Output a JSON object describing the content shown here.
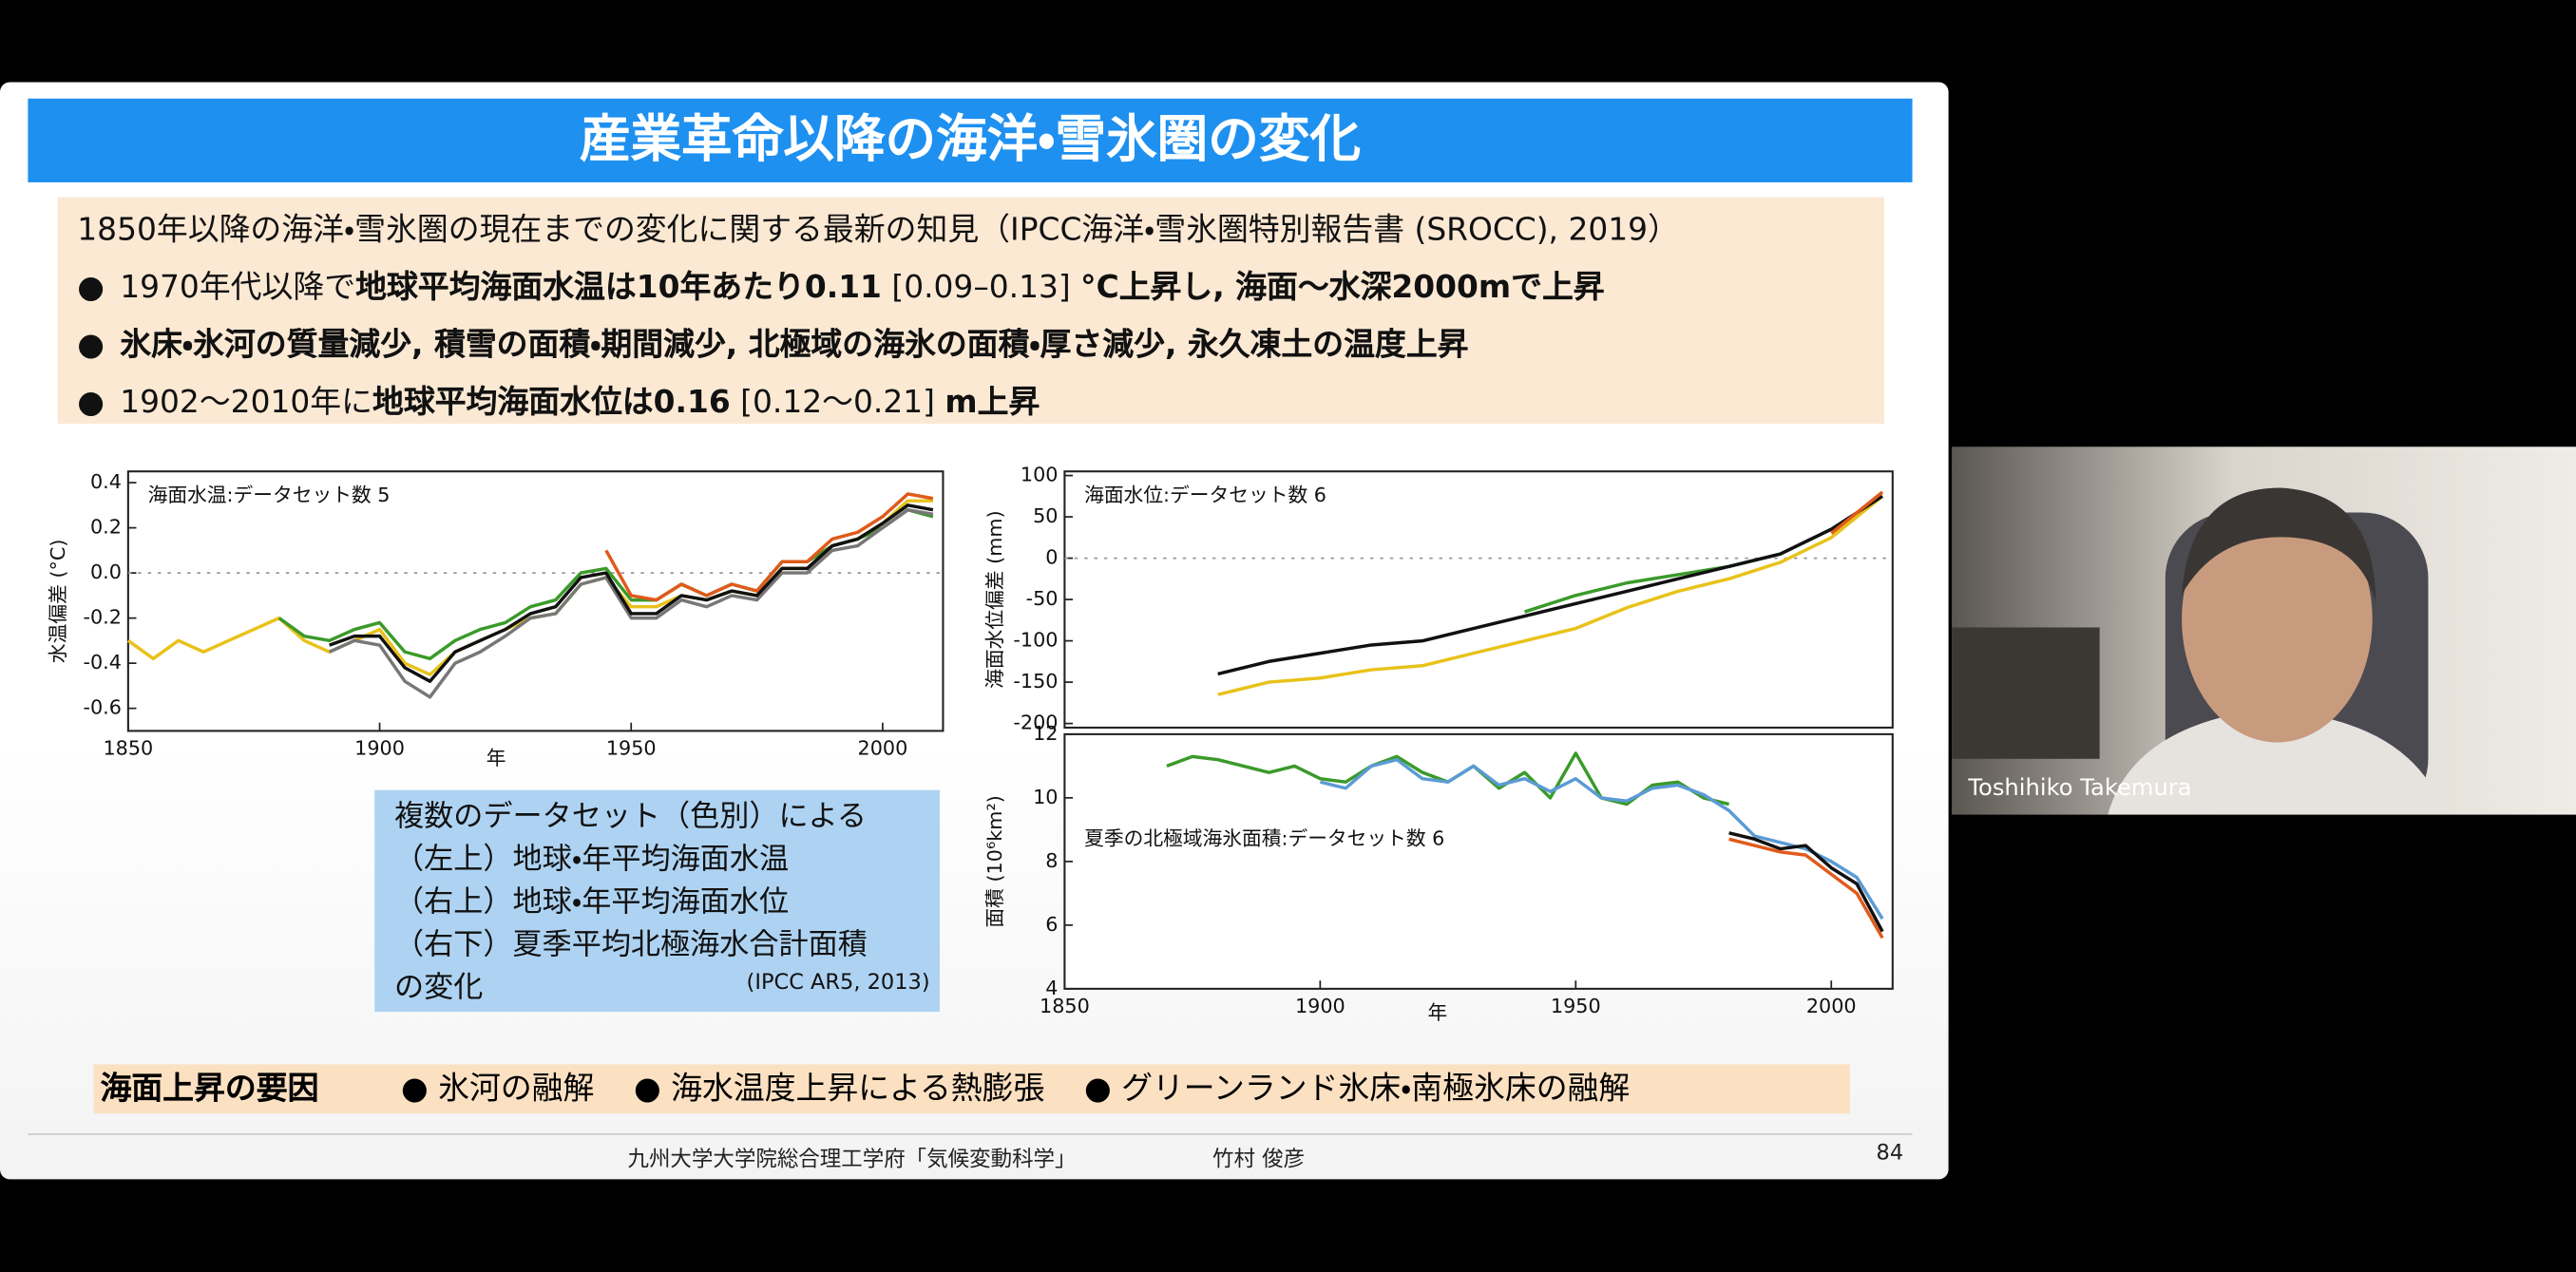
{
  "slide": {
    "title": "産業革命以降の海洋・雪氷圏の変化",
    "intro": "1850年以降の海洋・雪氷圏の現在までの変化に関する最新の知見（IPCC海洋・雪氷圏特別報告書 (SROCC), 2019）",
    "bullets": [
      [
        "1970年代以降で",
        "地球平均海面水温は10年あたり0.11",
        " [0.09–0.13] ",
        "°C上昇し, 海面〜水深2000mで上昇"
      ],
      [
        "氷床・氷河の質量減少, 積雪の面積・期間減少, 北極域の海氷の面積・厚さ減少, 永久凍土の温度上昇"
      ],
      [
        "1902〜2010年に",
        "地球平均海面水位は0.16",
        " [0.12〜0.21] ",
        "m上昇"
      ]
    ],
    "note": {
      "lines": [
        "複数のデータセット（色別）による",
        "（左上）地球・年平均海面水温",
        "（右上）地球・年平均海面水位",
        "（右下）夏季平均北極海水合計面積",
        "の変化"
      ],
      "source": "(IPCC AR5, 2013)"
    },
    "causes": {
      "label": "海面上昇の要因",
      "items": [
        "氷河の融解",
        "海水温度上昇による熱膨張",
        "グリーンランド氷床・南極氷床の融解"
      ]
    },
    "footer": {
      "course": "九州大学大学院総合理工学府「気候変動科学」",
      "author": "竹村 俊彦",
      "page": 84
    }
  },
  "participant": {
    "name": "Toshihiko Takemura"
  },
  "chart_data": [
    {
      "type": "line",
      "title": "海面水温:データセット数 5",
      "ylabel": "水温偏差 (°C)",
      "xlabel": "年",
      "xlim": [
        1850,
        2012
      ],
      "xticks": [
        1850,
        1900,
        1950,
        2000
      ],
      "ylim": [
        -0.7,
        0.45
      ],
      "yticks": [
        {
          "value": 0.4,
          "label": "0.4"
        },
        {
          "value": 0.2,
          "label": "0.2"
        },
        {
          "value": 0,
          "label": "0.0"
        },
        -0.2,
        -0.4,
        -0.6
      ],
      "zero_line": true,
      "x": [
        1850,
        1855,
        1860,
        1865,
        1870,
        1875,
        1880,
        1885,
        1890,
        1895,
        1900,
        1905,
        1910,
        1915,
        1920,
        1925,
        1930,
        1935,
        1940,
        1945,
        1950,
        1955,
        1960,
        1965,
        1970,
        1975,
        1980,
        1985,
        1990,
        1995,
        2000,
        2005,
        2010
      ],
      "series": [
        {
          "color": "#e8c21a",
          "values": [
            -0.3,
            -0.38,
            -0.3,
            -0.35,
            -0.3,
            -0.25,
            -0.2,
            -0.3,
            -0.35,
            -0.3,
            -0.25,
            -0.4,
            -0.45,
            -0.35,
            -0.3,
            -0.25,
            -0.2,
            -0.18,
            -0.05,
            -0.02,
            -0.15,
            -0.15,
            -0.1,
            -0.12,
            -0.08,
            -0.1,
            0.02,
            0.02,
            0.12,
            0.15,
            0.22,
            0.32,
            0.32
          ]
        },
        {
          "color": "#3a9a2a",
          "values": [
            null,
            null,
            null,
            null,
            null,
            null,
            -0.2,
            -0.28,
            -0.3,
            -0.25,
            -0.22,
            -0.35,
            -0.38,
            -0.3,
            -0.25,
            -0.22,
            -0.15,
            -0.12,
            0.0,
            0.02,
            -0.12,
            -0.12,
            -0.05,
            -0.1,
            -0.05,
            -0.08,
            0.05,
            0.05,
            0.12,
            0.15,
            0.2,
            0.28,
            0.25
          ]
        },
        {
          "color": "#777777",
          "values": [
            null,
            null,
            null,
            null,
            null,
            null,
            null,
            null,
            -0.35,
            -0.3,
            -0.32,
            -0.48,
            -0.55,
            -0.4,
            -0.35,
            -0.28,
            -0.2,
            -0.18,
            -0.05,
            -0.02,
            -0.2,
            -0.2,
            -0.12,
            -0.15,
            -0.1,
            -0.12,
            0.0,
            0.0,
            0.1,
            0.12,
            0.2,
            0.28,
            0.26
          ]
        },
        {
          "color": "#111111",
          "values": [
            null,
            null,
            null,
            null,
            null,
            null,
            null,
            null,
            -0.32,
            -0.28,
            -0.28,
            -0.42,
            -0.48,
            -0.35,
            -0.3,
            -0.25,
            -0.18,
            -0.15,
            -0.02,
            0.0,
            -0.18,
            -0.18,
            -0.1,
            -0.12,
            -0.08,
            -0.1,
            0.02,
            0.02,
            0.12,
            0.15,
            0.22,
            0.3,
            0.28
          ]
        },
        {
          "color": "#e05a1a",
          "values": [
            null,
            null,
            null,
            null,
            null,
            null,
            null,
            null,
            null,
            null,
            null,
            null,
            null,
            null,
            null,
            null,
            null,
            null,
            null,
            0.1,
            -0.1,
            -0.12,
            -0.05,
            -0.1,
            -0.05,
            -0.08,
            0.05,
            0.05,
            0.15,
            0.18,
            0.25,
            0.35,
            0.33
          ]
        }
      ]
    },
    {
      "type": "line",
      "title": "海面水位:データセット数 6",
      "ylabel": "海面水位偏差 (mm)",
      "xlim": [
        1850,
        2012
      ],
      "ylim": [
        -205,
        105
      ],
      "yticks": [
        100,
        50,
        0,
        -50,
        -100,
        -150,
        -200
      ],
      "zero_line": true,
      "x": [
        1880,
        1890,
        1900,
        1910,
        1920,
        1930,
        1940,
        1950,
        1960,
        1970,
        1980,
        1990,
        2000,
        2010
      ],
      "series": [
        {
          "color": "#e8c21a",
          "values": [
            -165,
            -150,
            -145,
            -135,
            -130,
            -115,
            -100,
            -85,
            -60,
            -40,
            -25,
            -5,
            25,
            75
          ]
        },
        {
          "color": "#3a9a2a",
          "values": [
            null,
            null,
            null,
            null,
            null,
            null,
            -65,
            -45,
            -30,
            -20,
            -10,
            5,
            35,
            null
          ]
        },
        {
          "color": "#111111",
          "values": [
            -140,
            -125,
            -115,
            -105,
            -100,
            -85,
            -70,
            -55,
            -40,
            -25,
            -10,
            5,
            35,
            75
          ]
        },
        {
          "color": "#e05a1a",
          "values": [
            null,
            null,
            null,
            null,
            null,
            null,
            null,
            null,
            null,
            null,
            null,
            null,
            30,
            80
          ]
        }
      ]
    },
    {
      "type": "line",
      "title": "夏季の北極域海氷面積:データセット数 6",
      "ylabel": "面積 (10⁶km²)",
      "xlabel": "年",
      "xlim": [
        1850,
        2012
      ],
      "xticks": [
        1850,
        1900,
        1950,
        2000
      ],
      "ylim": [
        4,
        12
      ],
      "yticks": [
        12,
        10,
        8,
        6,
        4
      ],
      "x": [
        1870,
        1875,
        1880,
        1885,
        1890,
        1895,
        1900,
        1905,
        1910,
        1915,
        1920,
        1925,
        1930,
        1935,
        1940,
        1945,
        1950,
        1955,
        1960,
        1965,
        1970,
        1975,
        1980,
        1985,
        1990,
        1995,
        2000,
        2005,
        2010
      ],
      "series": [
        {
          "color": "#3a9a2a",
          "values": [
            11,
            11.3,
            11.2,
            11.0,
            10.8,
            11.0,
            10.6,
            10.5,
            11.0,
            11.3,
            10.8,
            10.5,
            11.0,
            10.3,
            10.8,
            10.0,
            11.4,
            10.0,
            9.8,
            10.4,
            10.5,
            10.0,
            9.8,
            null,
            null,
            null,
            null,
            null,
            null
          ]
        },
        {
          "color": "#5b9bd5",
          "values": [
            null,
            null,
            null,
            null,
            null,
            null,
            10.5,
            10.3,
            11.0,
            11.2,
            10.6,
            10.5,
            11.0,
            10.4,
            10.6,
            10.2,
            10.6,
            10.0,
            9.9,
            10.3,
            10.4,
            10.1,
            9.6,
            8.8,
            8.6,
            8.4,
            8.0,
            7.5,
            6.2
          ]
        },
        {
          "color": "#111111",
          "values": [
            null,
            null,
            null,
            null,
            null,
            null,
            null,
            null,
            null,
            null,
            null,
            null,
            null,
            null,
            null,
            null,
            null,
            null,
            null,
            null,
            null,
            null,
            8.9,
            8.7,
            8.4,
            8.5,
            7.8,
            7.3,
            5.8
          ]
        },
        {
          "color": "#e05a1a",
          "values": [
            null,
            null,
            null,
            null,
            null,
            null,
            null,
            null,
            null,
            null,
            null,
            null,
            null,
            null,
            null,
            null,
            null,
            null,
            null,
            null,
            null,
            null,
            8.7,
            8.5,
            8.3,
            8.2,
            7.6,
            7.0,
            5.6
          ]
        }
      ]
    }
  ]
}
